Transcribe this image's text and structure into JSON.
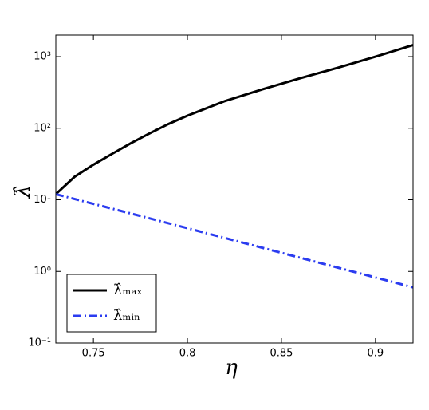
{
  "chart_data": {
    "type": "line",
    "xlabel": "η",
    "ylabel": "λ̂",
    "xlim": [
      0.73,
      0.92
    ],
    "xticks": [
      0.75,
      0.8,
      0.85,
      0.9
    ],
    "xtick_labels_fmt": null,
    "ylim": [
      0.1,
      2000
    ],
    "log_y": true,
    "yticks": [
      {
        "value": 0.1,
        "label": "10⁻¹"
      },
      {
        "value": 1,
        "label": "10⁰"
      },
      {
        "value": 10,
        "label": "10¹"
      },
      {
        "value": 100,
        "label": "10²"
      },
      {
        "value": 1000,
        "label": "10³"
      }
    ],
    "legend": "lower left",
    "series": [
      {
        "name": "λ̂ₘₐₓ",
        "color": "#000000",
        "dash": "solid",
        "x": [
          0.73,
          0.74,
          0.75,
          0.76,
          0.77,
          0.78,
          0.79,
          0.8,
          0.82,
          0.84,
          0.86,
          0.88,
          0.9,
          0.92
        ],
        "values": [
          12,
          21,
          31,
          44,
          62,
          85,
          115,
          150,
          240,
          350,
          500,
          700,
          1000,
          1450
        ]
      },
      {
        "name": "λ̂ₘᵢₙ",
        "color": "#2b3cf0",
        "dash": "dashdot",
        "x": [
          0.73,
          0.78,
          0.83,
          0.88,
          0.92
        ],
        "values": [
          12,
          5.5,
          2.5,
          1.13,
          0.6
        ]
      }
    ]
  }
}
